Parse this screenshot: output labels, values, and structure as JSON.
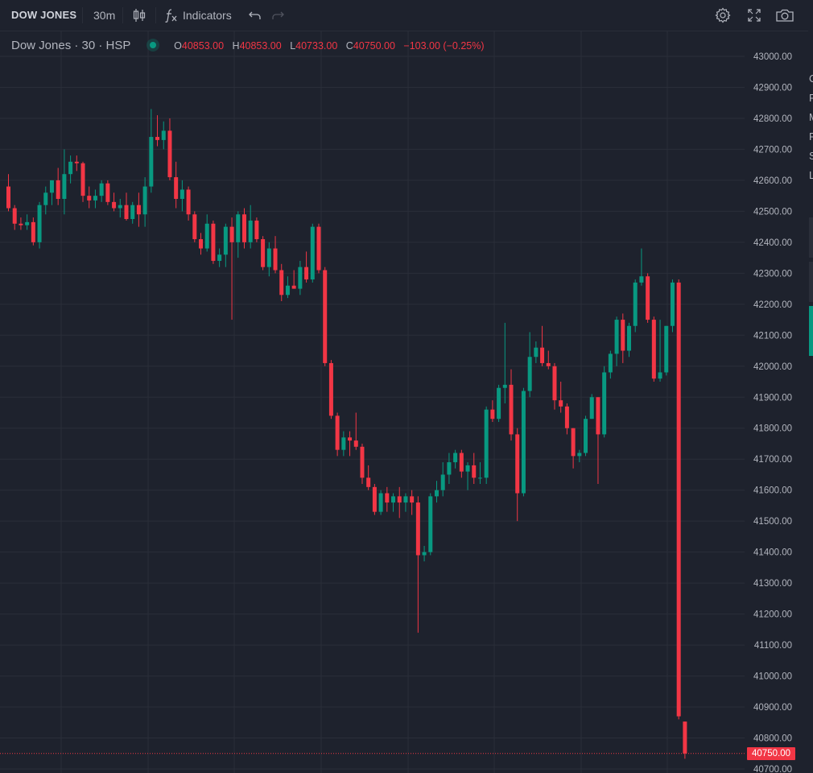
{
  "toolbar": {
    "symbol": "DOW JONES",
    "interval": "30m",
    "indicators_label": "Indicators",
    "icons": [
      "candles-icon",
      "indicators-fx-icon",
      "undo-icon",
      "redo-icon",
      "gear-icon",
      "fullscreen-icon",
      "camera-icon"
    ]
  },
  "legend": {
    "title": "Dow Jones · 30 · HSP",
    "open_key": "O",
    "open": "40853.00",
    "high_key": "H",
    "high": "40853.00",
    "low_key": "L",
    "low": "40733.00",
    "close_key": "C",
    "close": "40750.00",
    "change": "−103.00 (−0.25%)"
  },
  "side_panel_letters": [
    "C",
    "F",
    "M",
    "F",
    "S",
    "L"
  ],
  "colors": {
    "up": "#089981",
    "down": "#f23645",
    "background": "#1e222d",
    "grid": "#2a2e39",
    "axis_text": "#b2b5be"
  },
  "chart_data": {
    "type": "candlestick",
    "title": "",
    "xlabel": "",
    "ylabel": "",
    "ylim": [
      40700,
      43000
    ],
    "grid": true,
    "current_price_label": "40750.00",
    "y_ticks": [
      "43000.00",
      "42900.00",
      "42800.00",
      "42700.00",
      "42600.00",
      "42500.00",
      "42400.00",
      "42300.00",
      "42200.00",
      "42100.00",
      "42000.00",
      "41900.00",
      "41800.00",
      "41700.00",
      "41600.00",
      "41500.00",
      "41400.00",
      "41300.00",
      "41200.00",
      "41100.00",
      "41000.00",
      "40900.00",
      "40800.00",
      "40700.00"
    ],
    "candles": [
      {
        "o": 42580,
        "h": 42620,
        "l": 42500,
        "c": 42510
      },
      {
        "o": 42510,
        "h": 42520,
        "l": 42440,
        "c": 42460
      },
      {
        "o": 42460,
        "h": 42480,
        "l": 42440,
        "c": 42455
      },
      {
        "o": 42455,
        "h": 42490,
        "l": 42440,
        "c": 42465
      },
      {
        "o": 42465,
        "h": 42480,
        "l": 42390,
        "c": 42400
      },
      {
        "o": 42400,
        "h": 42530,
        "l": 42380,
        "c": 42520
      },
      {
        "o": 42520,
        "h": 42580,
        "l": 42490,
        "c": 42560
      },
      {
        "o": 42560,
        "h": 42600,
        "l": 42520,
        "c": 42600
      },
      {
        "o": 42600,
        "h": 42640,
        "l": 42520,
        "c": 42540
      },
      {
        "o": 42540,
        "h": 42700,
        "l": 42490,
        "c": 42620
      },
      {
        "o": 42620,
        "h": 42680,
        "l": 42590,
        "c": 42660
      },
      {
        "o": 42660,
        "h": 42680,
        "l": 42630,
        "c": 42655
      },
      {
        "o": 42655,
        "h": 42660,
        "l": 42530,
        "c": 42550
      },
      {
        "o": 42550,
        "h": 42580,
        "l": 42510,
        "c": 42535
      },
      {
        "o": 42535,
        "h": 42570,
        "l": 42510,
        "c": 42550
      },
      {
        "o": 42550,
        "h": 42600,
        "l": 42530,
        "c": 42590
      },
      {
        "o": 42590,
        "h": 42600,
        "l": 42520,
        "c": 42530
      },
      {
        "o": 42530,
        "h": 42560,
        "l": 42500,
        "c": 42510
      },
      {
        "o": 42510,
        "h": 42540,
        "l": 42480,
        "c": 42520
      },
      {
        "o": 42520,
        "h": 42560,
        "l": 42470,
        "c": 42475
      },
      {
        "o": 42475,
        "h": 42530,
        "l": 42460,
        "c": 42520
      },
      {
        "o": 42520,
        "h": 42560,
        "l": 42450,
        "c": 42490
      },
      {
        "o": 42490,
        "h": 42610,
        "l": 42450,
        "c": 42580
      },
      {
        "o": 42580,
        "h": 42830,
        "l": 42560,
        "c": 42740
      },
      {
        "o": 42740,
        "h": 42810,
        "l": 42710,
        "c": 42730
      },
      {
        "o": 42730,
        "h": 42790,
        "l": 42700,
        "c": 42760
      },
      {
        "o": 42760,
        "h": 42800,
        "l": 42600,
        "c": 42610
      },
      {
        "o": 42610,
        "h": 42660,
        "l": 42510,
        "c": 42540
      },
      {
        "o": 42540,
        "h": 42600,
        "l": 42500,
        "c": 42570
      },
      {
        "o": 42570,
        "h": 42580,
        "l": 42470,
        "c": 42490
      },
      {
        "o": 42490,
        "h": 42500,
        "l": 42400,
        "c": 42410
      },
      {
        "o": 42410,
        "h": 42430,
        "l": 42360,
        "c": 42380
      },
      {
        "o": 42380,
        "h": 42490,
        "l": 42370,
        "c": 42460
      },
      {
        "o": 42460,
        "h": 42470,
        "l": 42330,
        "c": 42340
      },
      {
        "o": 42340,
        "h": 42380,
        "l": 42320,
        "c": 42360
      },
      {
        "o": 42360,
        "h": 42460,
        "l": 42320,
        "c": 42450
      },
      {
        "o": 42450,
        "h": 42480,
        "l": 42150,
        "c": 42400
      },
      {
        "o": 42400,
        "h": 42500,
        "l": 42350,
        "c": 42490
      },
      {
        "o": 42490,
        "h": 42510,
        "l": 42380,
        "c": 42400
      },
      {
        "o": 42400,
        "h": 42520,
        "l": 42380,
        "c": 42470
      },
      {
        "o": 42470,
        "h": 42480,
        "l": 42400,
        "c": 42410
      },
      {
        "o": 42410,
        "h": 42420,
        "l": 42310,
        "c": 42320
      },
      {
        "o": 42320,
        "h": 42400,
        "l": 42290,
        "c": 42380
      },
      {
        "o": 42380,
        "h": 42420,
        "l": 42300,
        "c": 42310
      },
      {
        "o": 42310,
        "h": 42330,
        "l": 42210,
        "c": 42230
      },
      {
        "o": 42230,
        "h": 42290,
        "l": 42220,
        "c": 42260
      },
      {
        "o": 42260,
        "h": 42310,
        "l": 42250,
        "c": 42250
      },
      {
        "o": 42250,
        "h": 42340,
        "l": 42230,
        "c": 42320
      },
      {
        "o": 42320,
        "h": 42370,
        "l": 42270,
        "c": 42280
      },
      {
        "o": 42280,
        "h": 42460,
        "l": 42270,
        "c": 42450
      },
      {
        "o": 42450,
        "h": 42460,
        "l": 42300,
        "c": 42310
      },
      {
        "o": 42310,
        "h": 42320,
        "l": 42000,
        "c": 42010
      },
      {
        "o": 42010,
        "h": 42020,
        "l": 41830,
        "c": 41840
      },
      {
        "o": 41840,
        "h": 41850,
        "l": 41710,
        "c": 41730
      },
      {
        "o": 41730,
        "h": 41790,
        "l": 41710,
        "c": 41770
      },
      {
        "o": 41770,
        "h": 41790,
        "l": 41710,
        "c": 41760
      },
      {
        "o": 41760,
        "h": 41850,
        "l": 41730,
        "c": 41740
      },
      {
        "o": 41740,
        "h": 41750,
        "l": 41620,
        "c": 41640
      },
      {
        "o": 41640,
        "h": 41680,
        "l": 41600,
        "c": 41610
      },
      {
        "o": 41610,
        "h": 41620,
        "l": 41520,
        "c": 41530
      },
      {
        "o": 41530,
        "h": 41600,
        "l": 41520,
        "c": 41590
      },
      {
        "o": 41590,
        "h": 41610,
        "l": 41530,
        "c": 41560
      },
      {
        "o": 41560,
        "h": 41590,
        "l": 41530,
        "c": 41580
      },
      {
        "o": 41580,
        "h": 41610,
        "l": 41510,
        "c": 41560
      },
      {
        "o": 41560,
        "h": 41590,
        "l": 41530,
        "c": 41580
      },
      {
        "o": 41580,
        "h": 41600,
        "l": 41520,
        "c": 41560
      },
      {
        "o": 41560,
        "h": 41580,
        "l": 41140,
        "c": 41390
      },
      {
        "o": 41390,
        "h": 41420,
        "l": 41370,
        "c": 41400
      },
      {
        "o": 41400,
        "h": 41590,
        "l": 41390,
        "c": 41580
      },
      {
        "o": 41580,
        "h": 41630,
        "l": 41560,
        "c": 41600
      },
      {
        "o": 41600,
        "h": 41690,
        "l": 41580,
        "c": 41650
      },
      {
        "o": 41650,
        "h": 41720,
        "l": 41620,
        "c": 41690
      },
      {
        "o": 41690,
        "h": 41730,
        "l": 41670,
        "c": 41720
      },
      {
        "o": 41720,
        "h": 41730,
        "l": 41640,
        "c": 41660
      },
      {
        "o": 41660,
        "h": 41690,
        "l": 41600,
        "c": 41680
      },
      {
        "o": 41680,
        "h": 41720,
        "l": 41620,
        "c": 41640
      },
      {
        "o": 41640,
        "h": 41690,
        "l": 41620,
        "c": 41640
      },
      {
        "o": 41640,
        "h": 41870,
        "l": 41620,
        "c": 41860
      },
      {
        "o": 41860,
        "h": 41890,
        "l": 41820,
        "c": 41830
      },
      {
        "o": 41830,
        "h": 41940,
        "l": 41820,
        "c": 41930
      },
      {
        "o": 41930,
        "h": 42140,
        "l": 41880,
        "c": 41940
      },
      {
        "o": 41940,
        "h": 41990,
        "l": 41760,
        "c": 41780
      },
      {
        "o": 41780,
        "h": 41800,
        "l": 41500,
        "c": 41590
      },
      {
        "o": 41590,
        "h": 41930,
        "l": 41580,
        "c": 41920
      },
      {
        "o": 41920,
        "h": 42110,
        "l": 41900,
        "c": 42030
      },
      {
        "o": 42030,
        "h": 42080,
        "l": 42010,
        "c": 42060
      },
      {
        "o": 42060,
        "h": 42130,
        "l": 42000,
        "c": 42010
      },
      {
        "o": 42010,
        "h": 42050,
        "l": 41990,
        "c": 42000
      },
      {
        "o": 42000,
        "h": 42010,
        "l": 41860,
        "c": 41890
      },
      {
        "o": 41890,
        "h": 41950,
        "l": 41850,
        "c": 41870
      },
      {
        "o": 41870,
        "h": 41880,
        "l": 41780,
        "c": 41800
      },
      {
        "o": 41800,
        "h": 41800,
        "l": 41670,
        "c": 41710
      },
      {
        "o": 41710,
        "h": 41730,
        "l": 41690,
        "c": 41720
      },
      {
        "o": 41720,
        "h": 41840,
        "l": 41710,
        "c": 41830
      },
      {
        "o": 41830,
        "h": 41910,
        "l": 41830,
        "c": 41900
      },
      {
        "o": 41900,
        "h": 41900,
        "l": 41620,
        "c": 41780
      },
      {
        "o": 41780,
        "h": 42000,
        "l": 41770,
        "c": 41980
      },
      {
        "o": 41980,
        "h": 42050,
        "l": 41960,
        "c": 42040
      },
      {
        "o": 42040,
        "h": 42160,
        "l": 42000,
        "c": 42150
      },
      {
        "o": 42150,
        "h": 42170,
        "l": 42010,
        "c": 42050
      },
      {
        "o": 42050,
        "h": 42140,
        "l": 42030,
        "c": 42130
      },
      {
        "o": 42130,
        "h": 42280,
        "l": 42110,
        "c": 42270
      },
      {
        "o": 42270,
        "h": 42380,
        "l": 42260,
        "c": 42290
      },
      {
        "o": 42290,
        "h": 42300,
        "l": 42140,
        "c": 42150
      },
      {
        "o": 42150,
        "h": 42160,
        "l": 41950,
        "c": 41960
      },
      {
        "o": 41960,
        "h": 42150,
        "l": 41950,
        "c": 41980
      },
      {
        "o": 41980,
        "h": 42130,
        "l": 41970,
        "c": 42130
      },
      {
        "o": 42130,
        "h": 42280,
        "l": 42110,
        "c": 42270
      },
      {
        "o": 42270,
        "h": 42280,
        "l": 40860,
        "c": 40870
      },
      {
        "o": 40853,
        "h": 40853,
        "l": 40733,
        "c": 40750
      }
    ]
  }
}
